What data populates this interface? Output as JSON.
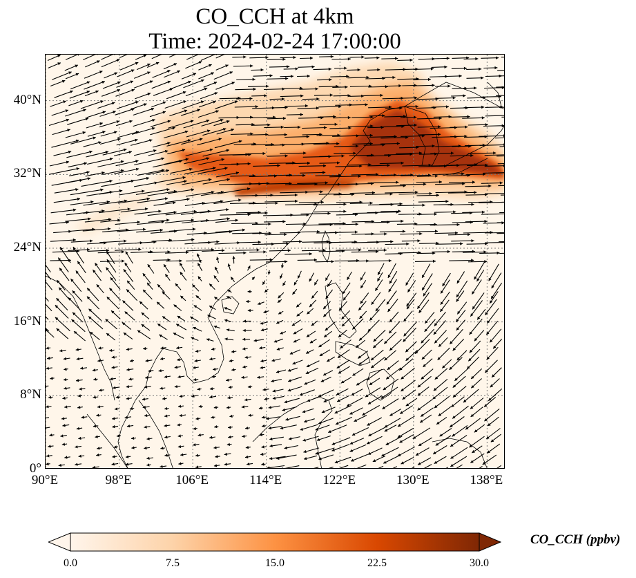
{
  "title": {
    "line1": "CO_CCH at 4km",
    "line2": "Time: 2024-02-24 17:00:00"
  },
  "map": {
    "extent": {
      "lon_min": 90,
      "lon_max": 140,
      "lat_min": 0,
      "lat_max": 45
    },
    "lon_ticks": [
      {
        "value": 90,
        "label": "90°E"
      },
      {
        "value": 98,
        "label": "98°E"
      },
      {
        "value": 106,
        "label": "106°E"
      },
      {
        "value": 114,
        "label": "114°E"
      },
      {
        "value": 122,
        "label": "122°E"
      },
      {
        "value": 130,
        "label": "130°E"
      },
      {
        "value": 138,
        "label": "138°E"
      }
    ],
    "lat_ticks": [
      {
        "value": 0,
        "label": "0°"
      },
      {
        "value": 8,
        "label": "8°N"
      },
      {
        "value": 16,
        "label": "16°N"
      },
      {
        "value": 24,
        "label": "24°N"
      },
      {
        "value": 32,
        "label": "32°N"
      },
      {
        "value": 40,
        "label": "40°N"
      }
    ],
    "gridlines": true,
    "colors": {
      "background": "#fff6ea",
      "coastline": "#000000",
      "gridline": "#777777",
      "arrow": "#000000"
    }
  },
  "colorbar": {
    "label": "CO_CCH (ppbv)",
    "vmin": 0,
    "vmax": 30,
    "ticks": [
      {
        "value": 0,
        "label": "0.0"
      },
      {
        "value": 7.5,
        "label": "7.5"
      },
      {
        "value": 15,
        "label": "15.0"
      },
      {
        "value": 22.5,
        "label": "22.5"
      },
      {
        "value": 30,
        "label": "30.0"
      }
    ],
    "colormap": [
      "#fff5eb",
      "#fdd3a9",
      "#fd9243",
      "#d94801",
      "#7f2704"
    ],
    "extend": "both"
  }
}
